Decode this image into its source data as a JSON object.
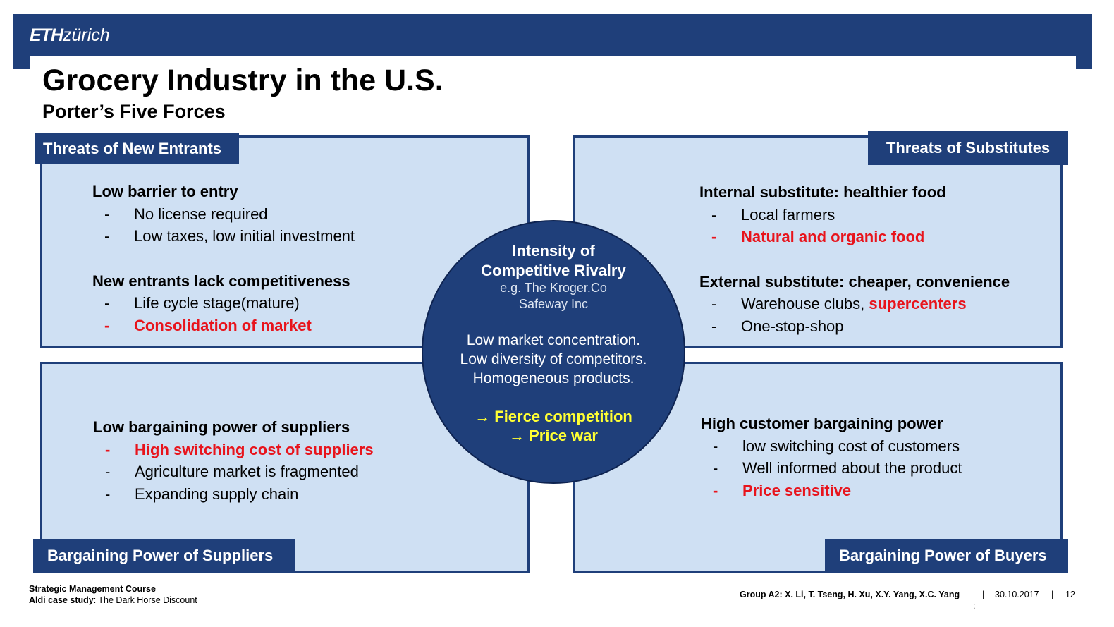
{
  "header": {
    "logo_bold": "ETH",
    "logo_italic": "zürich"
  },
  "title": "Grocery Industry in the U.S.",
  "subtitle": "Porter’s Five Forces",
  "quadrants": {
    "top_left": {
      "tag": "Threats of New Entrants",
      "groups": [
        {
          "head": "Low barrier to entry",
          "items": [
            "No license required",
            "Low taxes, low initial investment"
          ]
        },
        {
          "head": "New entrants lack competitiveness",
          "items": [
            "Life cycle stage(mature)",
            "Consolidation of market"
          ]
        }
      ]
    },
    "top_right": {
      "tag": "Threats of Substitutes",
      "groups": [
        {
          "head": "Internal substitute: healthier food",
          "items": [
            "Local farmers",
            "Natural and organic food"
          ]
        },
        {
          "head": "External substitute: cheaper, convenience",
          "items": [
            "Warehouse clubs, ",
            "supercenters",
            "One-stop-shop"
          ]
        }
      ]
    },
    "bottom_left": {
      "tag": "Bargaining Power of Suppliers",
      "groups": [
        {
          "head": "Low bargaining power of suppliers",
          "items": [
            "High switching cost of suppliers",
            "Agriculture market is fragmented",
            "Expanding supply chain"
          ]
        }
      ]
    },
    "bottom_right": {
      "tag": "Bargaining Power of Buyers",
      "groups": [
        {
          "head": "High customer bargaining power",
          "items": [
            "low switching cost of customers",
            "Well informed about the product",
            "Price sensitive"
          ]
        }
      ]
    }
  },
  "dash": "-",
  "center": {
    "title_line1": "Intensity of",
    "title_line2": "Competitive Rivalry",
    "example_line1": "e.g. The Kroger.Co",
    "example_line2": "Safeway Inc",
    "desc_line1": "Low market concentration.",
    "desc_line2": "Low diversity of competitors.",
    "desc_line3": "Homogeneous products.",
    "result_line1": "→ Fierce competition",
    "result_line2": "→ Price war"
  },
  "footer": {
    "course": "Strategic Management Course",
    "case_label": "Aldi case study",
    "case_title": ": The Dark Horse Discount",
    "group": "Group A2: X. Li, T. Tseng, H. Xu, X.Y. Yang, X.C. Yang",
    "separator": "|",
    "date": "30.10.2017",
    "page": "12",
    "colon": ":"
  },
  "colors": {
    "navy": "#1f3f7a",
    "panel": "#cfe0f3",
    "highlight_red": "#e8141c",
    "highlight_yellow": "#ffff33"
  }
}
